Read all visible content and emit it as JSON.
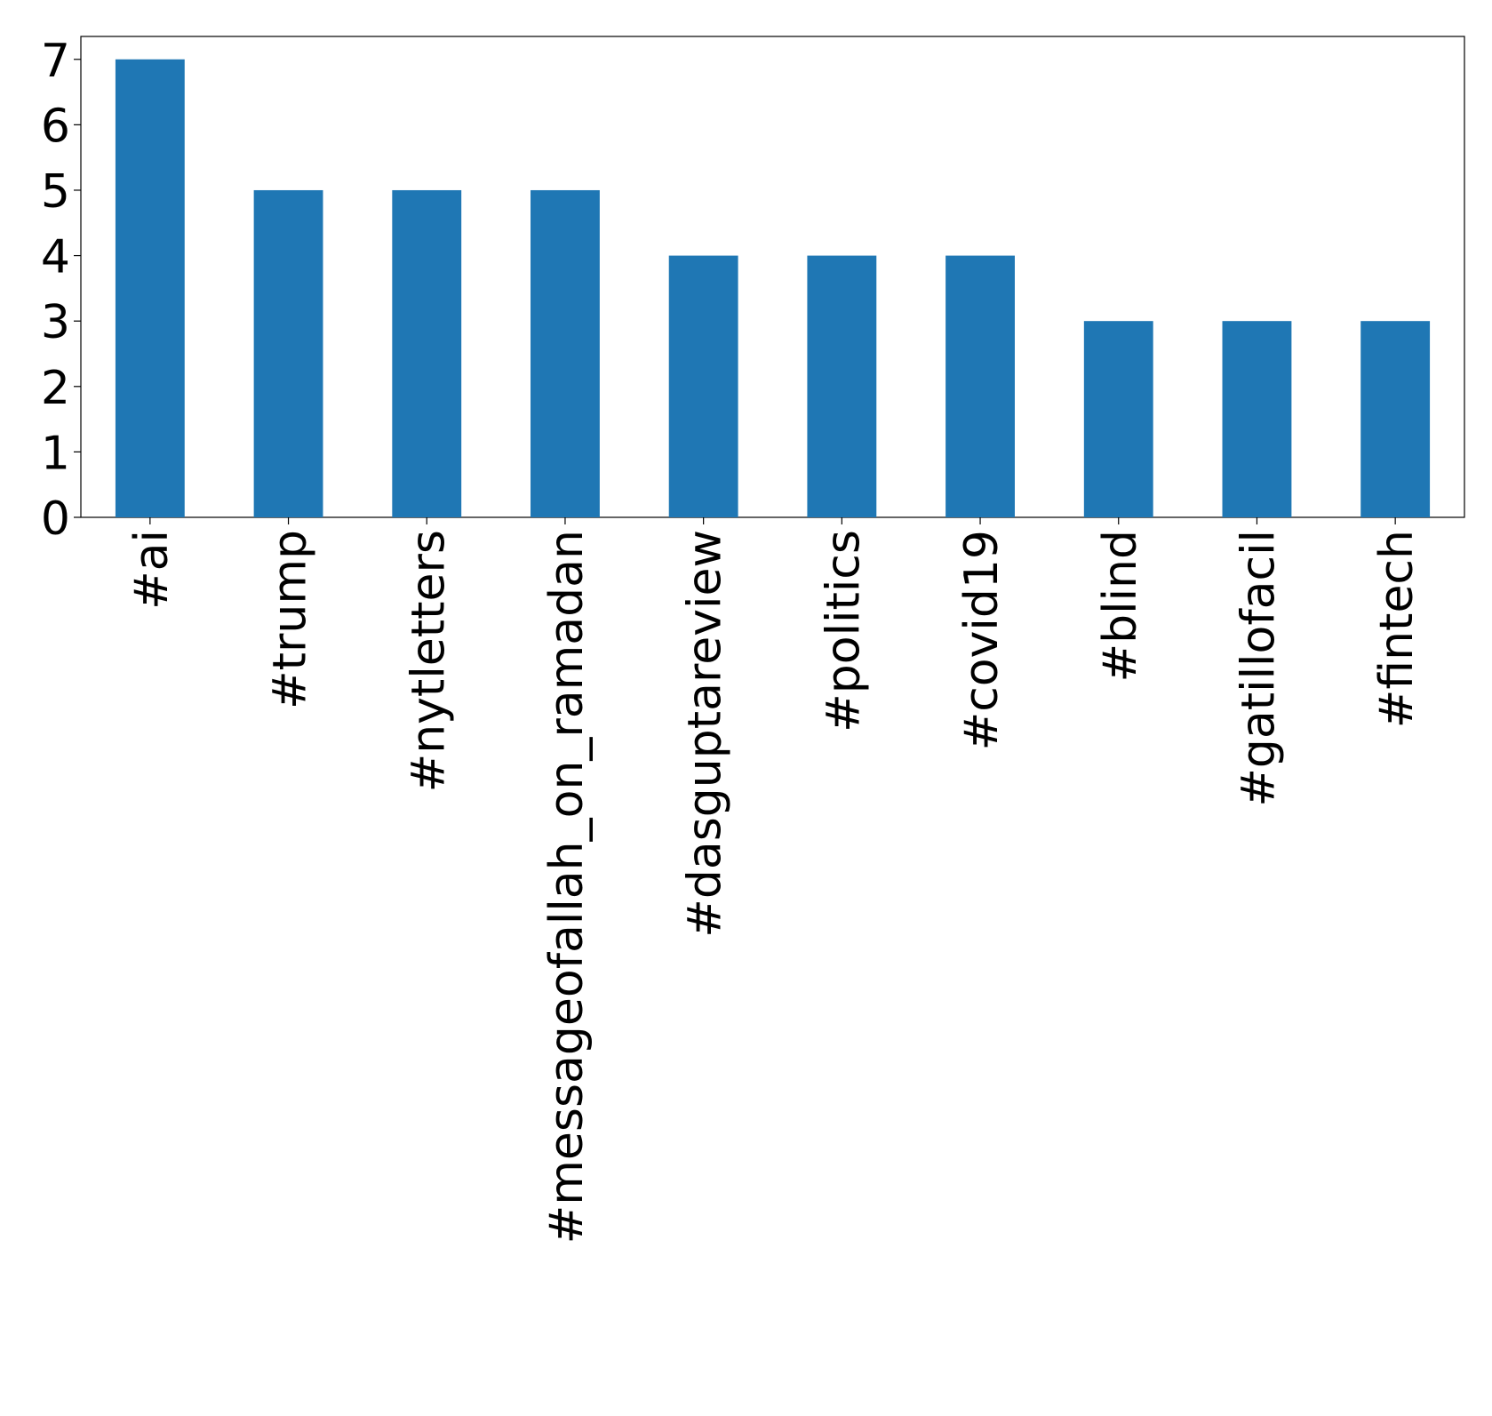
{
  "chart_data": {
    "type": "bar",
    "categories": [
      "#ai",
      "#trump",
      "#nytletters",
      "#messageofallah_on_ramadan",
      "#dasguptareview",
      "#politics",
      "#covid19",
      "#blind",
      "#gatillofacil",
      "#fintech"
    ],
    "values": [
      7,
      5,
      5,
      5,
      4,
      4,
      4,
      3,
      3,
      3
    ],
    "color": "#1f77b4",
    "ylim": [
      0,
      7.35
    ],
    "yticks": [
      0,
      1,
      2,
      3,
      4,
      5,
      6,
      7
    ],
    "grid": false
  }
}
